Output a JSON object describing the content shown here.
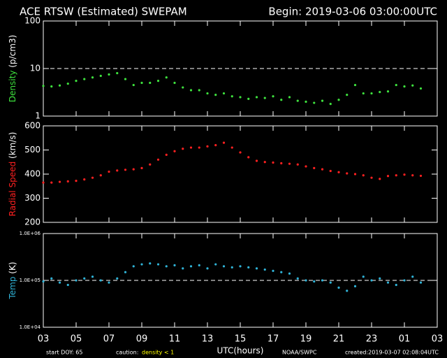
{
  "header": {
    "title": "ACE RTSW (Estimated) SWEPAM",
    "begin": "Begin: 2019-03-06 03:00:00UTC"
  },
  "footer": {
    "start": "start DOY: 65",
    "caution": "caution:",
    "caution_value": "density < 1",
    "xlabel": "UTC(hours)",
    "source": "NOAA/SWPC",
    "created": "created:2019-03-07 02:08:04UTC"
  },
  "chart_data": [
    {
      "type": "scatter",
      "ylabel": "Density",
      "yunit": "(p/cm3)",
      "color": "#3ee23e",
      "log": true,
      "ylim": [
        1,
        100
      ],
      "yticks": [
        1,
        10,
        100
      ],
      "reference_line": 10,
      "xlim": [
        0,
        24
      ],
      "xticks": [
        0,
        2,
        4,
        6,
        8,
        10,
        12,
        14,
        16,
        18,
        20,
        22,
        24
      ],
      "x": [
        0,
        0.5,
        1,
        1.5,
        2,
        2.5,
        3,
        3.5,
        4,
        4.5,
        5,
        5.5,
        6,
        6.5,
        7,
        7.5,
        8,
        8.5,
        9,
        9.5,
        10,
        10.5,
        11,
        11.5,
        12,
        12.5,
        13,
        13.5,
        14,
        14.5,
        15,
        15.5,
        16,
        16.5,
        17,
        17.5,
        18,
        18.5,
        19,
        19.5,
        20,
        20.5,
        21,
        21.5,
        22,
        22.5,
        23
      ],
      "values": [
        4.3,
        4.2,
        4.4,
        4.8,
        5.5,
        6,
        6.5,
        7,
        7.5,
        8,
        6,
        4.5,
        5,
        5,
        5.5,
        6.5,
        5,
        4,
        3.5,
        3.5,
        3,
        2.8,
        3,
        2.6,
        2.5,
        2.3,
        2.5,
        2.4,
        2.6,
        2.2,
        2.5,
        2.1,
        2,
        1.9,
        2.1,
        1.8,
        2.2,
        2.8,
        4.5,
        3,
        3,
        3.2,
        3.3,
        4.5,
        4.2,
        4.4,
        3.8
      ]
    },
    {
      "type": "scatter",
      "ylabel": "Radial Speed",
      "yunit": "(km/s)",
      "color": "#ff2020",
      "log": false,
      "ylim": [
        200,
        600
      ],
      "yticks": [
        200,
        300,
        400,
        500,
        600
      ],
      "xlim": [
        0,
        24
      ],
      "xticks": [
        0,
        2,
        4,
        6,
        8,
        10,
        12,
        14,
        16,
        18,
        20,
        22,
        24
      ],
      "x": [
        0,
        0.5,
        1,
        1.5,
        2,
        2.5,
        3,
        3.5,
        4,
        4.5,
        5,
        5.5,
        6,
        6.5,
        7,
        7.5,
        8,
        8.5,
        9,
        9.5,
        10,
        10.5,
        11,
        11.5,
        12,
        12.5,
        13,
        13.5,
        14,
        14.5,
        15,
        15.5,
        16,
        16.5,
        17,
        17.5,
        18,
        18.5,
        19,
        19.5,
        20,
        20.5,
        21,
        21.5,
        22,
        22.5,
        23
      ],
      "values": [
        365,
        365,
        368,
        370,
        372,
        378,
        385,
        395,
        410,
        415,
        418,
        420,
        425,
        440,
        460,
        480,
        495,
        505,
        510,
        510,
        515,
        520,
        530,
        510,
        490,
        470,
        455,
        450,
        448,
        445,
        443,
        440,
        432,
        425,
        420,
        413,
        408,
        403,
        400,
        395,
        385,
        380,
        392,
        395,
        398,
        395,
        393
      ]
    },
    {
      "type": "scatter",
      "ylabel": "Temp",
      "yunit": "(K)",
      "color": "#30b4d8",
      "log": true,
      "ylim": [
        10000,
        1000000
      ],
      "yticks": [
        {
          "value": 10000,
          "label": "1.0E+04"
        },
        {
          "value": 100000,
          "label": "1.0E+05"
        },
        {
          "value": 1000000,
          "label": "1.0E+06"
        }
      ],
      "reference_line": 100000,
      "xlim": [
        0,
        24
      ],
      "xticks": [
        {
          "value": 0,
          "label": "03"
        },
        {
          "value": 2,
          "label": "05"
        },
        {
          "value": 4,
          "label": "07"
        },
        {
          "value": 6,
          "label": "09"
        },
        {
          "value": 8,
          "label": "11"
        },
        {
          "value": 10,
          "label": "13"
        },
        {
          "value": 12,
          "label": "15"
        },
        {
          "value": 14,
          "label": "17"
        },
        {
          "value": 16,
          "label": "19"
        },
        {
          "value": 18,
          "label": "21"
        },
        {
          "value": 20,
          "label": "23"
        },
        {
          "value": 22,
          "label": "01"
        },
        {
          "value": 24,
          "label": "03"
        }
      ],
      "x": [
        0,
        0.5,
        1,
        1.5,
        2,
        2.5,
        3,
        3.5,
        4,
        4.5,
        5,
        5.5,
        6,
        6.5,
        7,
        7.5,
        8,
        8.5,
        9,
        9.5,
        10,
        10.5,
        11,
        11.5,
        12,
        12.5,
        13,
        13.5,
        14,
        14.5,
        15,
        15.5,
        16,
        16.5,
        17,
        17.5,
        18,
        18.5,
        19,
        19.5,
        20,
        20.5,
        21,
        21.5,
        22,
        22.5,
        23
      ],
      "values": [
        95000,
        110000,
        90000,
        80000,
        100000,
        110000,
        120000,
        100000,
        90000,
        110000,
        150000,
        200000,
        220000,
        230000,
        220000,
        200000,
        210000,
        180000,
        200000,
        210000,
        180000,
        220000,
        200000,
        190000,
        200000,
        190000,
        180000,
        170000,
        160000,
        150000,
        140000,
        110000,
        100000,
        95000,
        100000,
        90000,
        70000,
        60000,
        75000,
        120000,
        100000,
        110000,
        90000,
        80000,
        100000,
        120000,
        90000
      ]
    }
  ]
}
